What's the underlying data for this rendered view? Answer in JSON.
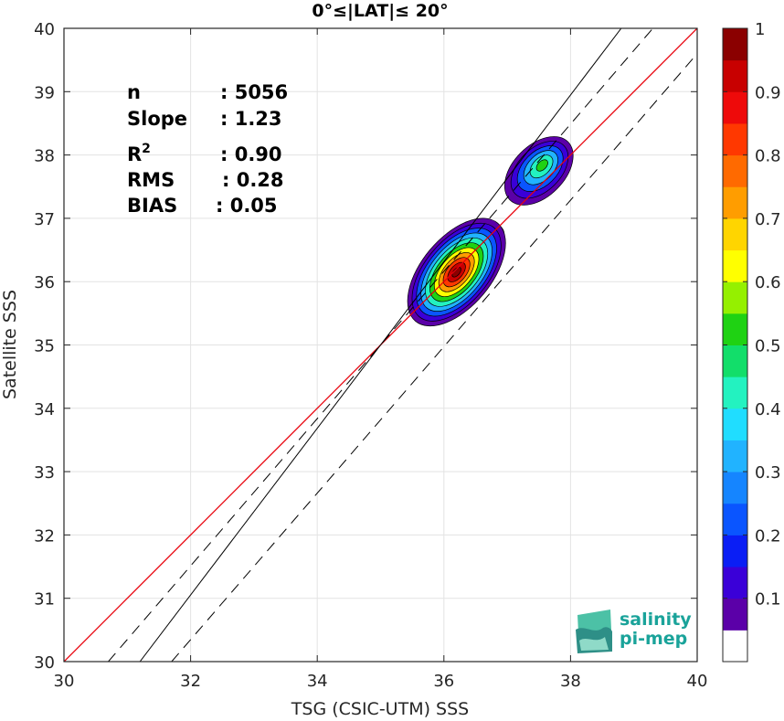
{
  "chart_data": {
    "type": "heatmap",
    "title": "0°≤|LAT|≤ 20°",
    "xlabel": "TSG (CSIC-UTM) SSS",
    "ylabel": "Satellite SSS",
    "xlim": [
      30,
      40
    ],
    "ylim": [
      30,
      40
    ],
    "xticks": [
      "30",
      "32",
      "34",
      "36",
      "38",
      "40"
    ],
    "yticks": [
      "30",
      "31",
      "32",
      "33",
      "34",
      "35",
      "36",
      "37",
      "38",
      "39",
      "40"
    ],
    "grid": true,
    "stats": [
      {
        "label": "n",
        "sep": ": 5056"
      },
      {
        "label": "Slope",
        "sep": ": 1.23"
      },
      {
        "label": "R",
        "sup": "2",
        "sep": ": 0.90"
      },
      {
        "label": "RMS",
        "sep": ": 0.28"
      },
      {
        "label": "BIAS",
        "sep": ": 0.05"
      }
    ],
    "lines": {
      "one_to_one": {
        "color": "#e8000b",
        "from": [
          30,
          30
        ],
        "to": [
          40,
          40
        ]
      },
      "fit": {
        "color": "#000000",
        "from": [
          31.2,
          30
        ],
        "to": [
          38.8,
          40
        ]
      },
      "fit_upper": {
        "color": "#000000",
        "dash": true,
        "from": [
          30.7,
          30
        ],
        "to": [
          39.3,
          40
        ]
      },
      "fit_lower": {
        "color": "#000000",
        "dash": true,
        "from": [
          31.7,
          30
        ],
        "to": [
          40,
          39.6
        ]
      }
    },
    "density_clusters": [
      {
        "name": "lower",
        "center": [
          36.2,
          36.15
        ],
        "levels": [
          0.05,
          0.1,
          0.2,
          0.3,
          0.4,
          0.5,
          0.6,
          0.7,
          0.8,
          0.9,
          1.0
        ]
      },
      {
        "name": "upper",
        "center": [
          37.5,
          37.75
        ],
        "levels": [
          0.05,
          0.1,
          0.2,
          0.3,
          0.4,
          0.5
        ]
      }
    ],
    "colorbar": {
      "ticks": [
        "0.1",
        "0.2",
        "0.3",
        "0.4",
        "0.5",
        "0.6",
        "0.7",
        "0.8",
        "0.9",
        "1"
      ],
      "colors": [
        "#ffffff",
        "#5b00a8",
        "#3a00d8",
        "#0a1ef5",
        "#0a55ff",
        "#1585ff",
        "#21b3ff",
        "#20ddff",
        "#23f2c0",
        "#12de6a",
        "#1fd213",
        "#95f000",
        "#ffff00",
        "#ffd500",
        "#ff9d00",
        "#ff6a00",
        "#ff3800",
        "#ee0a0a",
        "#c80000",
        "#8b0000"
      ]
    }
  },
  "logo": {
    "line1": "salinity",
    "line2": "pi-mep",
    "color": "#1aa39a"
  }
}
